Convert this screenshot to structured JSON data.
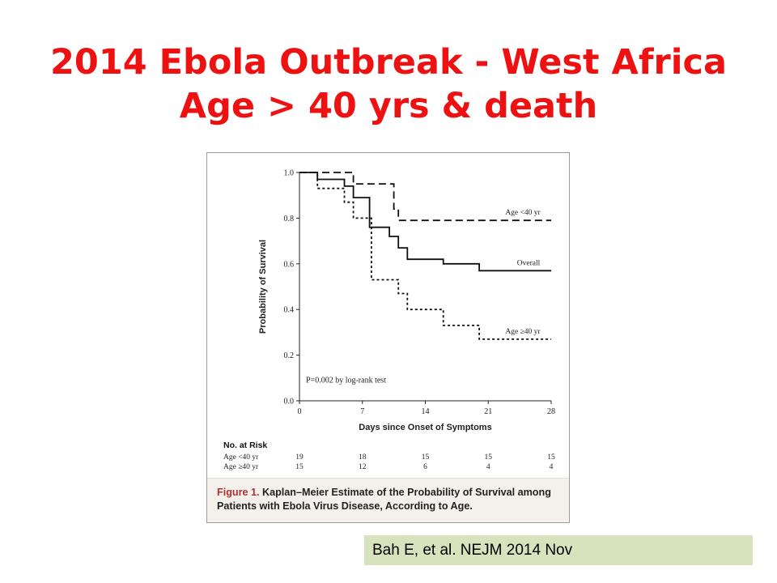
{
  "slide": {
    "title_line1": "2014 Ebola Outbreak - West Africa",
    "title_line2": "Age > 40 yrs & death",
    "citation": "Bah E, et al. NEJM 2014 Nov",
    "colors": {
      "title": "#ee1111",
      "citation_bg": "#d6e3bd",
      "caption_label": "#b0312c"
    }
  },
  "figure": {
    "caption_label": "Figure 1.",
    "caption_text": "Kaplan–Meier Estimate of the Probability of Survival among Patients with Ebola Virus Disease, According to Age.",
    "pvalue_text": "P=0.002 by log-rank test"
  },
  "chart_data": {
    "type": "line",
    "subtype": "kaplan-meier step",
    "xlabel": "Days since Onset of Symptoms",
    "ylabel": "Probability of Survival",
    "xlim": [
      0,
      28
    ],
    "ylim": [
      0,
      1.0
    ],
    "x_ticks": [
      "0",
      "7",
      "14",
      "21",
      "28"
    ],
    "y_ticks": [
      "0.0",
      "0.2",
      "0.4",
      "0.6",
      "0.8",
      "1.0"
    ],
    "grid": false,
    "series": [
      {
        "name": "Age <40 yr",
        "style": "dashed",
        "points": [
          [
            0,
            1.0
          ],
          [
            6,
            1.0
          ],
          [
            6,
            0.95
          ],
          [
            10.5,
            0.95
          ],
          [
            10.5,
            0.84
          ],
          [
            11,
            0.84
          ],
          [
            11,
            0.79
          ],
          [
            28,
            0.79
          ]
        ]
      },
      {
        "name": "Overall",
        "style": "solid",
        "points": [
          [
            0,
            1.0
          ],
          [
            2,
            1.0
          ],
          [
            2,
            0.97
          ],
          [
            5,
            0.97
          ],
          [
            5,
            0.94
          ],
          [
            6,
            0.94
          ],
          [
            6,
            0.89
          ],
          [
            7.8,
            0.89
          ],
          [
            7.8,
            0.76
          ],
          [
            10,
            0.76
          ],
          [
            10,
            0.72
          ],
          [
            11,
            0.72
          ],
          [
            11,
            0.67
          ],
          [
            12,
            0.67
          ],
          [
            12,
            0.62
          ],
          [
            16,
            0.62
          ],
          [
            16,
            0.6
          ],
          [
            20,
            0.6
          ],
          [
            20,
            0.57
          ],
          [
            28,
            0.57
          ]
        ]
      },
      {
        "name": "Age ≥40 yr",
        "style": "dotted",
        "points": [
          [
            0,
            1.0
          ],
          [
            2,
            1.0
          ],
          [
            2,
            0.93
          ],
          [
            5,
            0.93
          ],
          [
            5,
            0.87
          ],
          [
            6,
            0.87
          ],
          [
            6,
            0.8
          ],
          [
            8,
            0.8
          ],
          [
            8,
            0.53
          ],
          [
            11,
            0.53
          ],
          [
            11,
            0.47
          ],
          [
            12,
            0.47
          ],
          [
            12,
            0.4
          ],
          [
            16,
            0.4
          ],
          [
            16,
            0.33
          ],
          [
            20,
            0.33
          ],
          [
            20,
            0.27
          ],
          [
            28,
            0.27
          ]
        ]
      }
    ],
    "annotations": [
      "P=0.002 by log-rank test"
    ],
    "risk_table": {
      "title": "No. at Risk",
      "rows": [
        {
          "label": "Age <40 yr",
          "values": [
            "19",
            "18",
            "15",
            "15",
            "15"
          ]
        },
        {
          "label": "Age ≥40 yr",
          "values": [
            "15",
            "12",
            "6",
            "4",
            "4"
          ]
        }
      ]
    }
  }
}
